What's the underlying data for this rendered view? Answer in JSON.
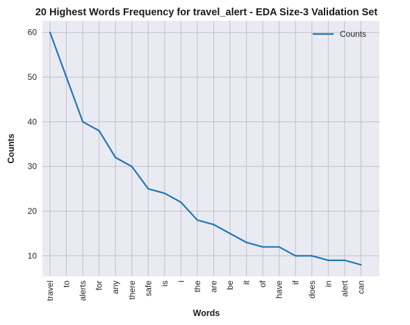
{
  "chart_data": {
    "type": "line",
    "title": "20 Highest Words Frequency for travel_alert - EDA Size-3 Validation Set",
    "xlabel": "Words",
    "ylabel": "Counts",
    "categories": [
      "travel",
      "to",
      "alerts",
      "for",
      "any",
      "there",
      "safe",
      "is",
      "i",
      "the",
      "are",
      "be",
      "it",
      "of",
      "have",
      "if",
      "does",
      "in",
      "alert",
      "can"
    ],
    "series": [
      {
        "name": "Counts",
        "values": [
          60,
          50,
          40,
          38,
          32,
          30,
          25,
          24,
          22,
          18,
          17,
          15,
          13,
          12,
          12,
          10,
          10,
          9,
          9,
          8
        ]
      }
    ],
    "ylim": [
      5.4,
      62.6
    ],
    "yticks": [
      "10",
      "20",
      "30",
      "40",
      "50",
      "60"
    ],
    "grid": true,
    "legend": "top-right",
    "colors": {
      "line": "#1f77b4",
      "plot_background": "#eaeaf2",
      "grid": "#c0c0c8"
    }
  }
}
